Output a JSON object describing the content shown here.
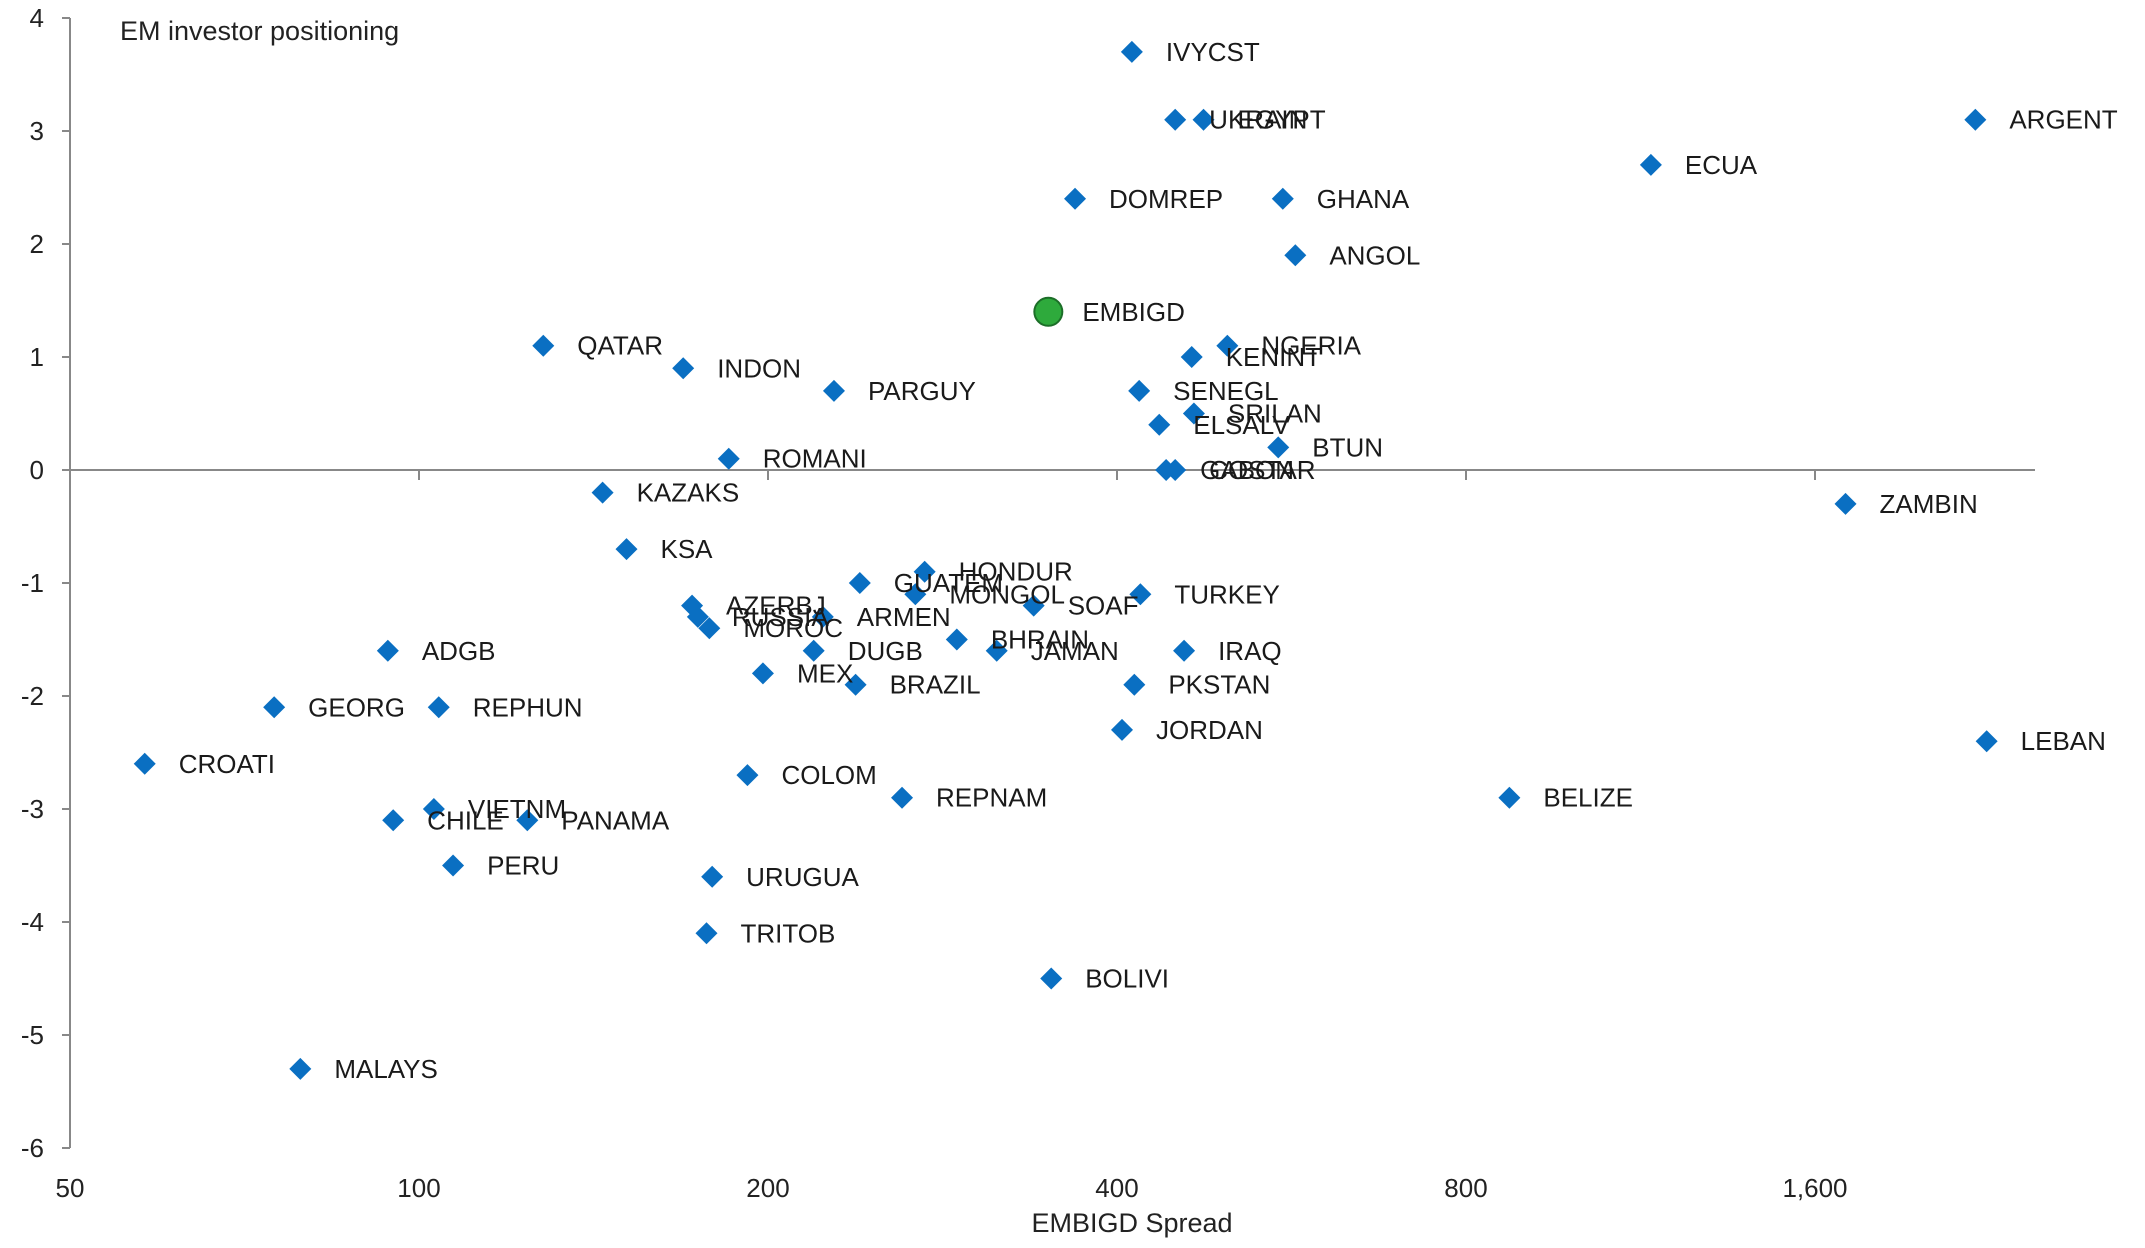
{
  "chart_data": {
    "type": "scatter",
    "title": "EM investor positioning",
    "xlabel": "EMBIGD Spread",
    "ylabel": "",
    "x_scale": "log2",
    "xlim": [
      50,
      2400
    ],
    "ylim": [
      -6,
      4
    ],
    "x_ticks": [
      50,
      100,
      200,
      400,
      800,
      1600
    ],
    "x_tick_labels": [
      "50",
      "100",
      "200",
      "400",
      "800",
      "1,600"
    ],
    "y_ticks": [
      4,
      3,
      2,
      1,
      0,
      -1,
      -2,
      -3,
      -4,
      -5,
      -6
    ],
    "y_tick_labels": [
      "4",
      "3",
      "2",
      "1",
      "0",
      "-1",
      "-2",
      "-3",
      "-4",
      "-5",
      "-6"
    ],
    "grid": false,
    "colors": {
      "country": "#0a6fc2",
      "highlight": "#2eaa3c",
      "axis": "#888888"
    },
    "points": [
      {
        "label": "IVYCST",
        "x": 412,
        "y": 3.7
      },
      {
        "label": "UKRAIN",
        "x": 449,
        "y": 3.1
      },
      {
        "label": "EGYPT",
        "x": 475,
        "y": 3.1
      },
      {
        "label": "ARGENT",
        "x": 2200,
        "y": 3.1
      },
      {
        "label": "ECUA",
        "x": 1155,
        "y": 2.7
      },
      {
        "label": "DOMREP",
        "x": 368,
        "y": 2.4
      },
      {
        "label": "GHANA",
        "x": 556,
        "y": 2.4
      },
      {
        "label": "ANGOL",
        "x": 570,
        "y": 1.9
      },
      {
        "label": "EMBIGD",
        "x": 349,
        "y": 1.4,
        "highlight": true
      },
      {
        "label": "NGERIA",
        "x": 498,
        "y": 1.1
      },
      {
        "label": "QATAR",
        "x": 128,
        "y": 1.1
      },
      {
        "label": "INDON",
        "x": 169,
        "y": 0.9
      },
      {
        "label": "KENINT",
        "x": 464,
        "y": 1.0
      },
      {
        "label": "PARGUY",
        "x": 228,
        "y": 0.7
      },
      {
        "label": "SENEGL",
        "x": 418,
        "y": 0.7
      },
      {
        "label": "SRILAN",
        "x": 466,
        "y": 0.5
      },
      {
        "label": "ELSALV",
        "x": 435,
        "y": 0.4
      },
      {
        "label": "BTUN",
        "x": 551,
        "y": 0.2
      },
      {
        "label": "ROMANI",
        "x": 185,
        "y": 0.1
      },
      {
        "label": "GABON",
        "x": 441,
        "y": 0.0
      },
      {
        "label": "COSTAR",
        "x": 449,
        "y": 0.0
      },
      {
        "label": "KAZAKS",
        "x": 144,
        "y": -0.2
      },
      {
        "label": "ZAMBIN",
        "x": 1700,
        "y": -0.3
      },
      {
        "label": "KSA",
        "x": 151,
        "y": -0.7
      },
      {
        "label": "GUATEM",
        "x": 240,
        "y": -1.0
      },
      {
        "label": "HONDUR",
        "x": 273,
        "y": -0.9
      },
      {
        "label": "MONGOL",
        "x": 268,
        "y": -1.1
      },
      {
        "label": "TURKEY",
        "x": 419,
        "y": -1.1
      },
      {
        "label": "AZERBJ",
        "x": 172,
        "y": -1.2
      },
      {
        "label": "SOAF",
        "x": 339,
        "y": -1.2
      },
      {
        "label": "RUSSIA",
        "x": 174,
        "y": -1.3
      },
      {
        "label": "ARMEN",
        "x": 223,
        "y": -1.3
      },
      {
        "label": "MOROC",
        "x": 178,
        "y": -1.4
      },
      {
        "label": "BHRAIN",
        "x": 291,
        "y": -1.5
      },
      {
        "label": "ADGB",
        "x": 94,
        "y": -1.6
      },
      {
        "label": "DUGB",
        "x": 219,
        "y": -1.6
      },
      {
        "label": "JAMAN",
        "x": 315,
        "y": -1.6
      },
      {
        "label": "IRAQ",
        "x": 457,
        "y": -1.6
      },
      {
        "label": "MEX",
        "x": 198,
        "y": -1.8
      },
      {
        "label": "BRAZIL",
        "x": 238,
        "y": -1.9
      },
      {
        "label": "PKSTAN",
        "x": 414,
        "y": -1.9
      },
      {
        "label": "GEORG",
        "x": 75,
        "y": -2.1
      },
      {
        "label": "REPHUN",
        "x": 104,
        "y": -2.1
      },
      {
        "label": "JORDAN",
        "x": 404,
        "y": -2.3
      },
      {
        "label": "LEBAN",
        "x": 2250,
        "y": -2.4
      },
      {
        "label": "CROATI",
        "x": 58,
        "y": -2.6
      },
      {
        "label": "COLOM",
        "x": 192,
        "y": -2.7
      },
      {
        "label": "REPNAM",
        "x": 261,
        "y": -2.9
      },
      {
        "label": "BELIZE",
        "x": 872,
        "y": -2.9
      },
      {
        "label": "VIETNM",
        "x": 103,
        "y": -3.0
      },
      {
        "label": "CHILE",
        "x": 95,
        "y": -3.1
      },
      {
        "label": "PANAMA",
        "x": 124,
        "y": -3.1
      },
      {
        "label": "PERU",
        "x": 107,
        "y": -3.5
      },
      {
        "label": "URUGUA",
        "x": 179,
        "y": -3.6
      },
      {
        "label": "TRITOB",
        "x": 177,
        "y": -4.1
      },
      {
        "label": "BOLIVI",
        "x": 351,
        "y": -4.5
      },
      {
        "label": "MALAYS",
        "x": 79,
        "y": -5.3
      }
    ]
  }
}
